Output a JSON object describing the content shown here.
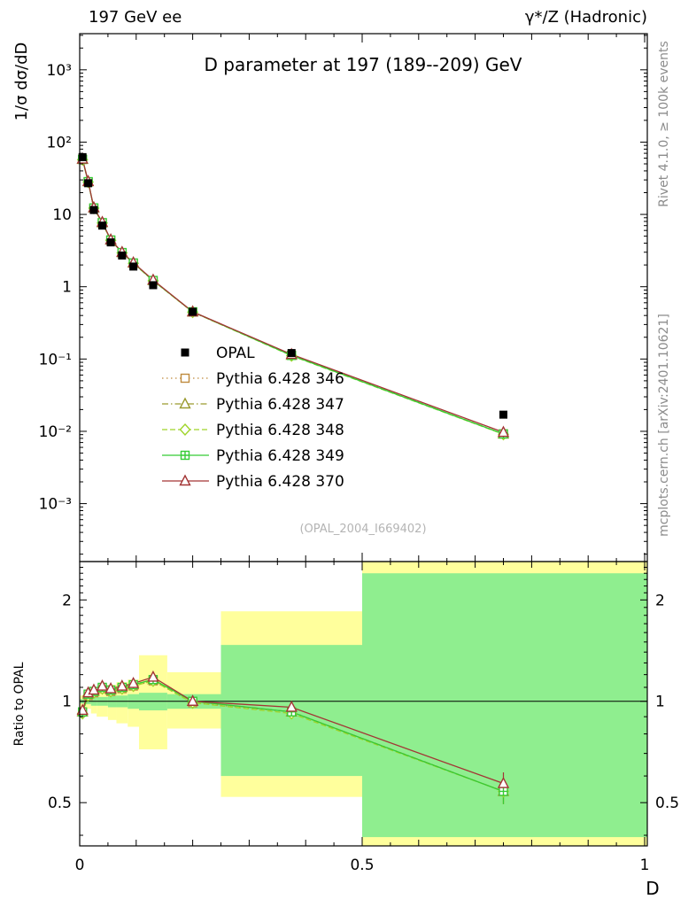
{
  "header": {
    "left": "197 GeV ee",
    "right": "γ*/Z (Hadronic)"
  },
  "side_notes": {
    "top_right": "Rivet 4.1.0, ≥ 100k events",
    "bottom_right": "mcplots.cern.ch [arXiv:2401.10621]"
  },
  "watermark": "(OPAL_2004_I669402)",
  "chart_data": {
    "type": "line",
    "title": "D parameter at 197 (189--209) GeV",
    "xlabel": "D",
    "ylabel": "1/σ  dσ/dD",
    "ratio_label": "Ratio to OPAL",
    "x_range": [
      0,
      1.03
    ],
    "x_ticks": {
      "values": [
        0,
        0.5,
        1
      ],
      "labels": [
        "0",
        "0.5",
        "1"
      ]
    },
    "y_scale": "log",
    "y_range": [
      0.000158,
      3162
    ],
    "y_tick_labels": {
      "3": "10³",
      "2": "10²",
      "1": "10",
      "0": "1",
      "-1": "10⁻¹",
      "-2": "10⁻²",
      "-3": "10⁻³"
    },
    "ratio_scale": "log",
    "ratio_range": [
      0.372,
      2.6
    ],
    "ratio_ticks": {
      "values": [
        0.5,
        1,
        2
      ],
      "labels": [
        "0.5",
        "1",
        "2"
      ]
    },
    "legend_position": "center-left",
    "grid": false,
    "x": [
      0.005,
      0.015,
      0.025,
      0.04,
      0.055,
      0.075,
      0.095,
      0.13,
      0.2,
      0.375,
      0.75
    ],
    "series": [
      {
        "name": "OPAL",
        "color": "#000000",
        "marker": "square-filled",
        "line": "none",
        "values": [
          62,
          27,
          11.5,
          7.0,
          4.1,
          2.7,
          1.9,
          1.05,
          0.45,
          0.121,
          0.017
        ]
      },
      {
        "name": "Pythia 6.428 346",
        "color": "#bf8a3e",
        "marker": "square-open",
        "line": "dot",
        "dash": "1.5 3.5",
        "values": [
          57.7,
          28.1,
          12.2,
          7.6,
          4.39,
          2.94,
          2.11,
          1.21,
          0.446,
          0.113,
          0.0092
        ],
        "ratio": [
          0.93,
          1.04,
          1.06,
          1.09,
          1.07,
          1.09,
          1.11,
          1.15,
          0.99,
          0.93,
          0.54
        ]
      },
      {
        "name": "Pythia 6.428 347",
        "color": "#9a9a2e",
        "marker": "triangle-open",
        "line": "dashdot",
        "dash": "7 3 1.5 3",
        "values": [
          57.7,
          28.4,
          12.3,
          7.7,
          4.43,
          2.97,
          2.13,
          1.22,
          0.45,
          0.113,
          0.0092
        ],
        "ratio": [
          0.93,
          1.05,
          1.07,
          1.1,
          1.08,
          1.1,
          1.12,
          1.16,
          1.0,
          0.93,
          0.54
        ]
      },
      {
        "name": "Pythia 6.428 348",
        "color": "#9fd42a",
        "marker": "diamond-open",
        "line": "dash",
        "dash": "6 3",
        "values": [
          57.0,
          28.1,
          12.2,
          7.6,
          4.39,
          2.94,
          2.11,
          1.21,
          0.446,
          0.111,
          0.0091
        ],
        "ratio": [
          0.92,
          1.04,
          1.06,
          1.09,
          1.07,
          1.09,
          1.11,
          1.15,
          0.99,
          0.92,
          0.54
        ]
      },
      {
        "name": "Pythia 6.428 349",
        "color": "#35cc35",
        "marker": "square-plus",
        "line": "solid",
        "dash": "",
        "values": [
          57.7,
          28.4,
          12.3,
          7.7,
          4.43,
          2.97,
          2.13,
          1.22,
          0.45,
          0.112,
          0.0092
        ],
        "ratio": [
          0.93,
          1.05,
          1.07,
          1.1,
          1.08,
          1.1,
          1.12,
          1.16,
          1.0,
          0.93,
          0.54
        ]
      },
      {
        "name": "Pythia 6.428 370",
        "color": "#a33535",
        "marker": "triangle-open",
        "line": "solid",
        "dash": "",
        "values": [
          58.3,
          28.6,
          12.4,
          7.8,
          4.47,
          3.0,
          2.15,
          1.24,
          0.45,
          0.116,
          0.0097
        ],
        "ratio": [
          0.94,
          1.06,
          1.08,
          1.11,
          1.09,
          1.11,
          1.13,
          1.18,
          1.0,
          0.96,
          0.57
        ]
      }
    ],
    "bands": [
      {
        "name": "data-uncertainty-band",
        "color": "#ffff9c",
        "segments": [
          [
            0,
            0.01,
            0.96,
            1.04
          ],
          [
            0.01,
            0.02,
            0.95,
            1.05
          ],
          [
            0.02,
            0.03,
            0.92,
            1.08
          ],
          [
            0.03,
            0.05,
            0.9,
            1.1
          ],
          [
            0.05,
            0.065,
            0.88,
            1.12
          ],
          [
            0.065,
            0.085,
            0.86,
            1.14
          ],
          [
            0.085,
            0.105,
            0.84,
            1.16
          ],
          [
            0.105,
            0.155,
            0.72,
            1.37
          ],
          [
            0.155,
            0.25,
            0.83,
            1.22
          ],
          [
            0.25,
            0.5,
            0.52,
            1.85
          ],
          [
            0.5,
            1.03,
            0.372,
            2.6
          ]
        ]
      },
      {
        "name": "mc-uncertainty-band",
        "color": "#8fee8f",
        "segments": [
          [
            0,
            0.01,
            0.985,
            1.015
          ],
          [
            0.01,
            0.02,
            0.98,
            1.02
          ],
          [
            0.02,
            0.03,
            0.97,
            1.03
          ],
          [
            0.03,
            0.05,
            0.97,
            1.03
          ],
          [
            0.05,
            0.065,
            0.96,
            1.04
          ],
          [
            0.065,
            0.085,
            0.96,
            1.04
          ],
          [
            0.085,
            0.105,
            0.95,
            1.05
          ],
          [
            0.105,
            0.155,
            0.94,
            1.06
          ],
          [
            0.155,
            0.25,
            0.95,
            1.05
          ],
          [
            0.25,
            0.5,
            0.6,
            1.47
          ],
          [
            0.5,
            1.03,
            0.395,
            2.4
          ]
        ]
      }
    ]
  }
}
